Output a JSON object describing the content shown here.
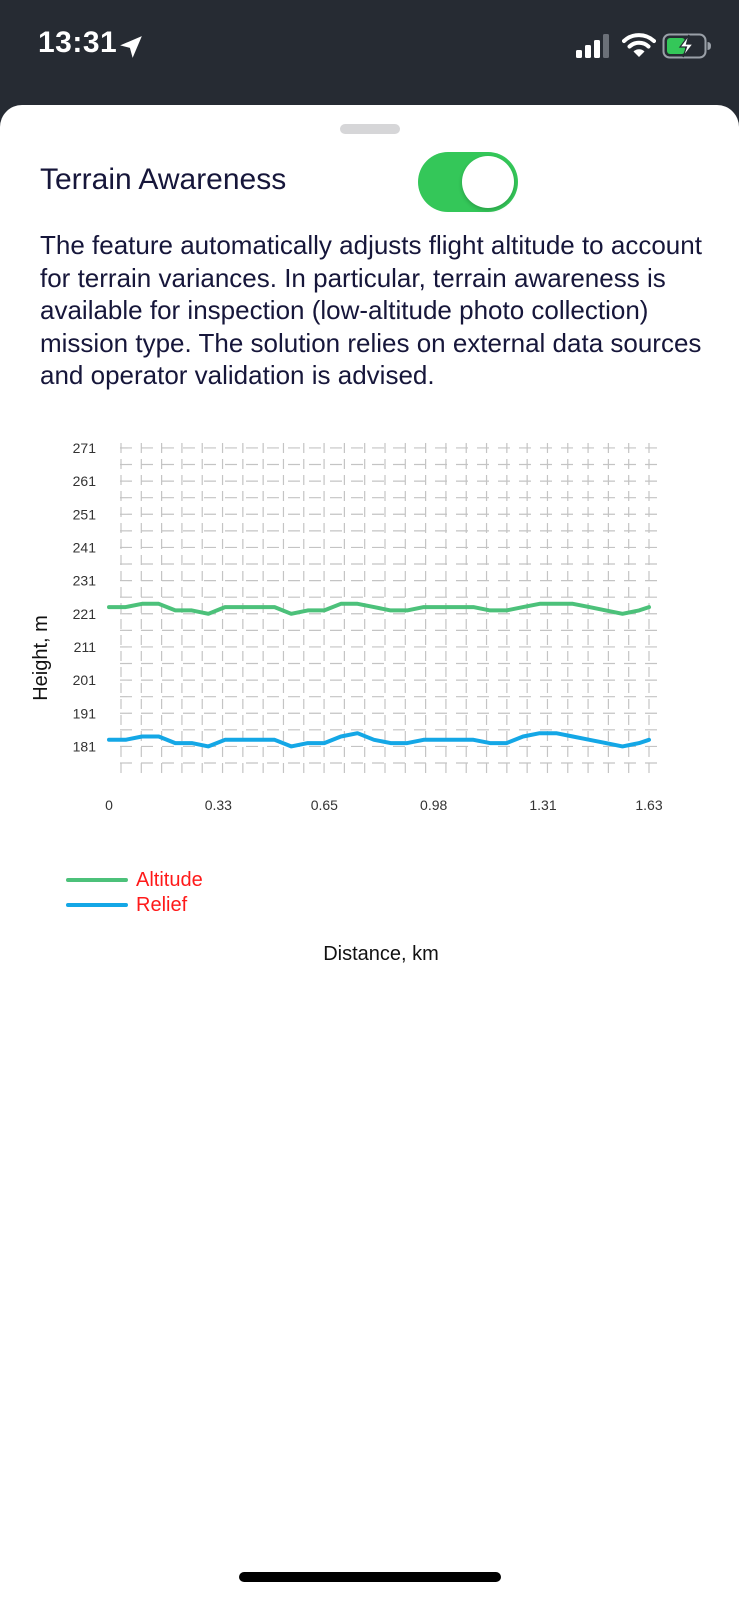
{
  "status_bar": {
    "time": "13:31",
    "icons": [
      "location-arrow-icon",
      "cellular-signal-icon",
      "wifi-icon",
      "battery-charging-icon"
    ]
  },
  "sheet": {
    "title": "Terrain Awareness",
    "toggle_on": true,
    "description": "The feature automatically adjusts flight altitude to account for terrain variances.  In particular, terrain awareness is available for inspection (low-altitude photo collection) mission type.  The solution relies on external data sources and operator validation is advised."
  },
  "colors": {
    "toggle_on": "#34c759",
    "altitude": "#4cc17a",
    "relief": "#14a7e6",
    "legend_text": "#ff1a1a",
    "status_bar_bg": "#262b33"
  },
  "chart_data": {
    "type": "line",
    "xlabel": "Distance, km",
    "ylabel": "Height, m",
    "x_ticks": [
      "0",
      "0.33",
      "0.65",
      "0.98",
      "1.31",
      "1.63"
    ],
    "y_ticks": [
      "271",
      "261",
      "251",
      "241",
      "231",
      "221",
      "211",
      "201",
      "191",
      "181"
    ],
    "xlim": [
      0,
      1.63
    ],
    "ylim": [
      176,
      274
    ],
    "grid": true,
    "legend_position": "bottom-left",
    "x": [
      0,
      0.05,
      0.1,
      0.15,
      0.2,
      0.25,
      0.3,
      0.35,
      0.4,
      0.45,
      0.5,
      0.55,
      0.6,
      0.65,
      0.7,
      0.75,
      0.8,
      0.85,
      0.9,
      0.95,
      1.0,
      1.05,
      1.1,
      1.15,
      1.2,
      1.25,
      1.3,
      1.35,
      1.4,
      1.45,
      1.5,
      1.55,
      1.6,
      1.63
    ],
    "series": [
      {
        "name": "Altitude",
        "values": [
          223,
          223,
          224,
          224,
          222,
          222,
          221,
          223,
          223,
          223,
          223,
          221,
          222,
          222,
          224,
          224,
          223,
          222,
          222,
          223,
          223,
          223,
          223,
          222,
          222,
          223,
          224,
          224,
          224,
          223,
          222,
          221,
          222,
          223
        ]
      },
      {
        "name": "Relief",
        "values": [
          183,
          183,
          184,
          184,
          182,
          182,
          181,
          183,
          183,
          183,
          183,
          181,
          182,
          182,
          184,
          185,
          183,
          182,
          182,
          183,
          183,
          183,
          183,
          182,
          182,
          184,
          185,
          185,
          184,
          183,
          182,
          181,
          182,
          183
        ]
      }
    ]
  }
}
